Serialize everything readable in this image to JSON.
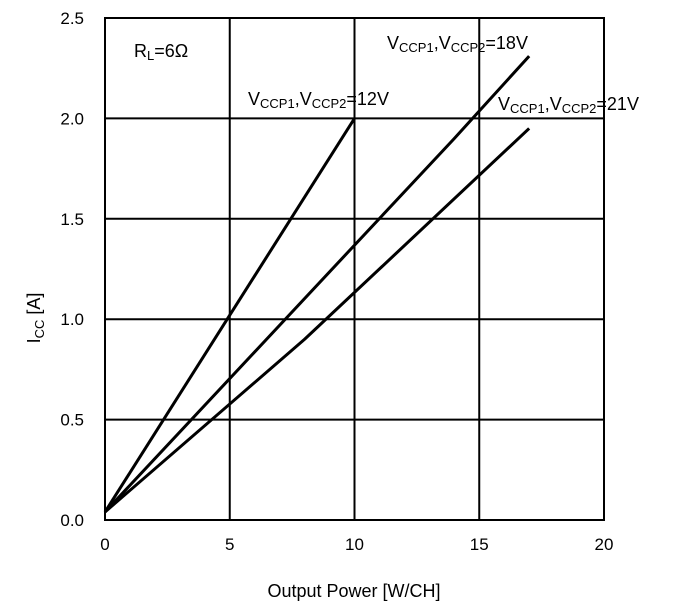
{
  "chart_data": {
    "type": "line",
    "xlabel": "Output Power [W/CH]",
    "ylabel": {
      "main": "I",
      "sub": "CC",
      "unit": " [A]"
    },
    "xlim": [
      0,
      20
    ],
    "ylim": [
      0,
      2.5
    ],
    "xticks": [
      0,
      5,
      10,
      15,
      20
    ],
    "yticks": [
      0,
      0.5,
      1.0,
      1.5,
      2.0,
      2.5
    ],
    "xtick_labels": [
      "0",
      "5",
      "10",
      "15",
      "20"
    ],
    "ytick_labels": [
      "0.0",
      "0.5",
      "1.0",
      "1.5",
      "2.0",
      "2.5"
    ],
    "grid": true,
    "legend": "none",
    "annotations": {
      "rl": {
        "main": "R",
        "sub": "L",
        "rest": "=6Ω"
      }
    },
    "series": [
      {
        "label_parts": {
          "v1": "V",
          "s1": "CCP1",
          "sep": ",V",
          "s2": "CCP2",
          "tail": "=12V"
        },
        "x": [
          0,
          10
        ],
        "y": [
          0.04,
          2.0
        ]
      },
      {
        "label_parts": {
          "v1": "V",
          "s1": "CCP1",
          "sep": ",V",
          "s2": "CCP2",
          "tail": "=18V"
        },
        "x": [
          0,
          14,
          17
        ],
        "y": [
          0.04,
          1.9,
          2.31
        ]
      },
      {
        "label_parts": {
          "v1": "V",
          "s1": "CCP1",
          "sep": ",V",
          "s2": "CCP2",
          "tail": "=21V"
        },
        "x": [
          0,
          8,
          17
        ],
        "y": [
          0.04,
          0.9,
          1.95
        ]
      }
    ]
  }
}
